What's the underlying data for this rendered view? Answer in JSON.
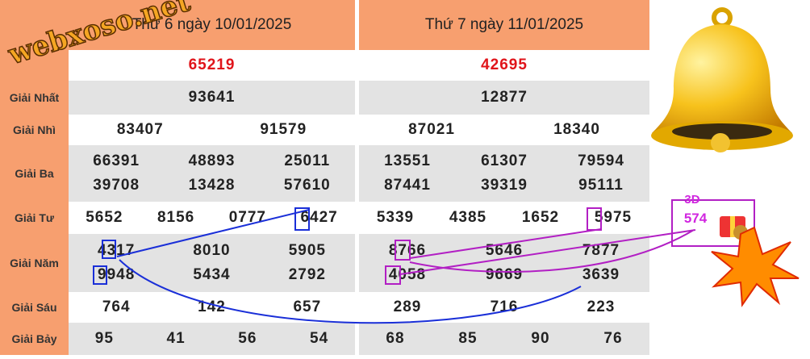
{
  "watermark": "webxoso.net",
  "table": {
    "labels": [
      "Giải Nhất",
      "Giải Nhì",
      "Giải Ba",
      "Giải Tư",
      "Giải Năm",
      "Giải Sáu",
      "Giải Bảy"
    ],
    "days": [
      {
        "header": "Thứ 6 ngày 10/01/2025",
        "special": "65219",
        "prizes": [
          [
            "93641"
          ],
          [
            "83407",
            "91579"
          ],
          [
            "66391",
            "48893",
            "25011",
            "39708",
            "13428",
            "57610"
          ],
          [
            "5652",
            "8156",
            "0777",
            "6427"
          ],
          [
            "4317",
            "8010",
            "5905",
            "9948",
            "5434",
            "2792"
          ],
          [
            "764",
            "142",
            "657"
          ],
          [
            "95",
            "41",
            "56",
            "54"
          ]
        ]
      },
      {
        "header": "Thứ 7 ngày 11/01/2025",
        "special": "42695",
        "prizes": [
          [
            "12877"
          ],
          [
            "87021",
            "18340"
          ],
          [
            "13551",
            "61307",
            "79594",
            "87441",
            "39319",
            "95111"
          ],
          [
            "5339",
            "4385",
            "1652",
            "5975"
          ],
          [
            "8766",
            "5646",
            "7877",
            "4058",
            "9669",
            "3639"
          ],
          [
            "289",
            "716",
            "223"
          ],
          [
            "68",
            "85",
            "90",
            "76"
          ]
        ]
      }
    ]
  },
  "prediction": {
    "label": "3D",
    "value": "574"
  }
}
